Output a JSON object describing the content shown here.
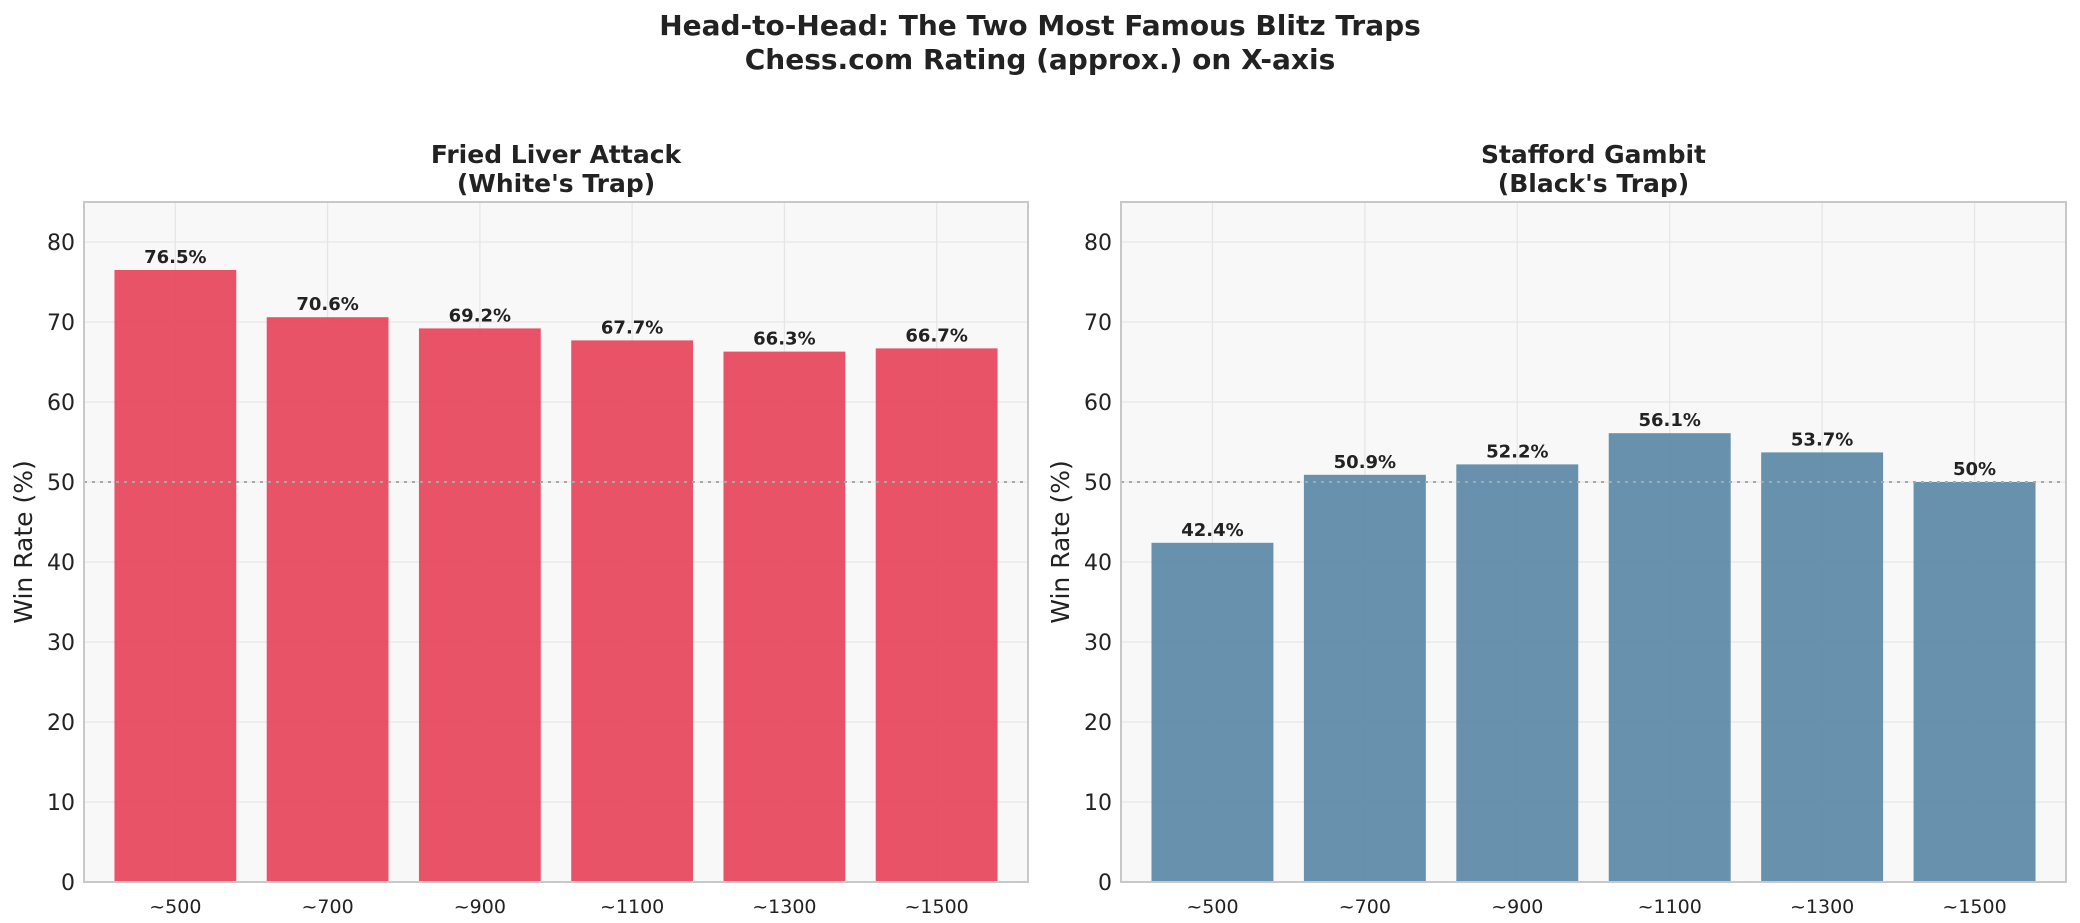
{
  "figure": {
    "title_line1": "Head-to-Head: The Two Most Famous Blitz Traps",
    "title_line2": "Chess.com Rating (approx.) on X-axis"
  },
  "chart_data": [
    {
      "type": "bar",
      "title": [
        "Fried Liver Attack",
        "(White's Trap)"
      ],
      "categories": [
        "~500",
        "~700",
        "~900",
        "~1100",
        "~1300",
        "~1500"
      ],
      "values": [
        76.5,
        70.6,
        69.2,
        67.7,
        66.3,
        66.7
      ],
      "value_labels": [
        "76.5%",
        "70.6%",
        "69.2%",
        "67.7%",
        "66.3%",
        "66.7%"
      ],
      "xlabel": "",
      "ylabel": "Win Rate (%)",
      "ylim": [
        0,
        85
      ],
      "yticks": [
        0,
        10,
        20,
        30,
        40,
        50,
        60,
        70,
        80
      ],
      "reference_line": 50,
      "grid": true,
      "bar_color": "#e84a5f"
    },
    {
      "type": "bar",
      "title": [
        "Stafford Gambit",
        "(Black's Trap)"
      ],
      "categories": [
        "~500",
        "~700",
        "~900",
        "~1100",
        "~1300",
        "~1500"
      ],
      "values": [
        42.4,
        50.9,
        52.2,
        56.1,
        53.7,
        50
      ],
      "value_labels": [
        "42.4%",
        "50.9%",
        "52.2%",
        "56.1%",
        "53.7%",
        "50%"
      ],
      "xlabel": "",
      "ylabel": "Win Rate (%)",
      "ylim": [
        0,
        85
      ],
      "yticks": [
        0,
        10,
        20,
        30,
        40,
        50,
        60,
        70,
        80
      ],
      "reference_line": 50,
      "grid": true,
      "bar_color": "#5f8ba8"
    }
  ],
  "colors": {
    "plot_background": "#f8f8f8",
    "grid": "#e6e6e6",
    "frame": "#c8c8c8",
    "reference_line": "#a8a8a8",
    "text": "#222222"
  }
}
